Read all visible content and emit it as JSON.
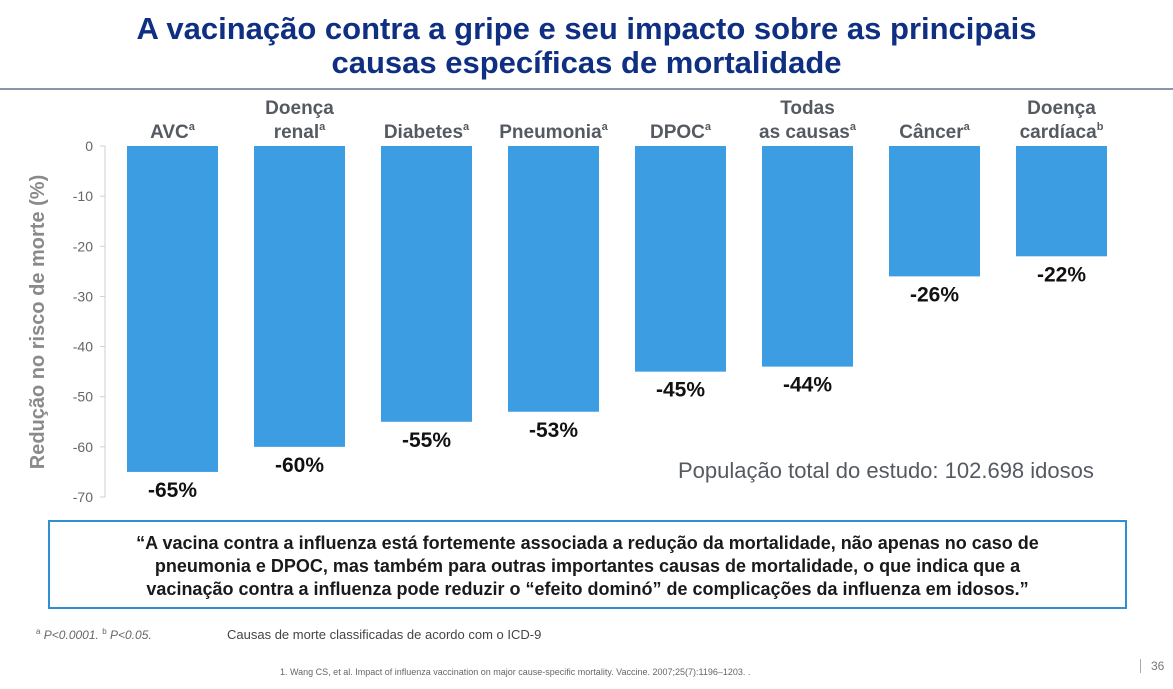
{
  "title": {
    "line1": "A vacinação contra a gripe e seu impacto sobre as principais",
    "line2": "causas específicas de mortalidade"
  },
  "chart_data": {
    "type": "bar",
    "categories": [
      {
        "lines": [
          "AVC"
        ],
        "sup": "a"
      },
      {
        "lines": [
          "Doença",
          "renal"
        ],
        "sup": "a"
      },
      {
        "lines": [
          "Diabetes"
        ],
        "sup": "a"
      },
      {
        "lines": [
          "Pneumonia"
        ],
        "sup": "a"
      },
      {
        "lines": [
          "DPOC"
        ],
        "sup": "a"
      },
      {
        "lines": [
          "Todas",
          "as causas"
        ],
        "sup": "a"
      },
      {
        "lines": [
          "Câncer"
        ],
        "sup": "a"
      },
      {
        "lines": [
          "Doença",
          "cardíaca"
        ],
        "sup": "b"
      }
    ],
    "values": [
      -65,
      -60,
      -55,
      -53,
      -45,
      -44,
      -26,
      -22
    ],
    "data_labels": [
      "-65%",
      "-60%",
      "-55%",
      "-53%",
      "-45%",
      "-44%",
      "-26%",
      "-22%"
    ],
    "ylabel": "Redução no risco de morte (%)",
    "ylim": [
      -70,
      0
    ],
    "yticks": [
      "0",
      "-10",
      "-20",
      "-30",
      "-40",
      "-50",
      "-60",
      "-70"
    ],
    "bar_color": "#3d9de2"
  },
  "study_note": "População total do estudo: 102.698 idosos",
  "quote": {
    "line1": "“A vacina contra a influenza está fortemente associada a redução da mortalidade, não apenas no caso de",
    "line2": "pneumonia e DPOC, mas também para outras importantes causas de mortalidade, o que indica que a",
    "line3": "vacinação contra a influenza pode reduzir o “efeito dominó” de complicações da influenza em idosos.”"
  },
  "footnote": {
    "a_sup": "a",
    "a_text": "P<0.0001.",
    "b_sup": "b",
    "b_text": "P<0.05."
  },
  "classification_note": "Causas de morte classificadas de acordo com o ICD-9",
  "reference": "1. Wang CS, et al. Impact of influenza vaccination on major cause-specific mortality. Vaccine. 2007;25(7):1196–1203. .",
  "page_number": "36"
}
